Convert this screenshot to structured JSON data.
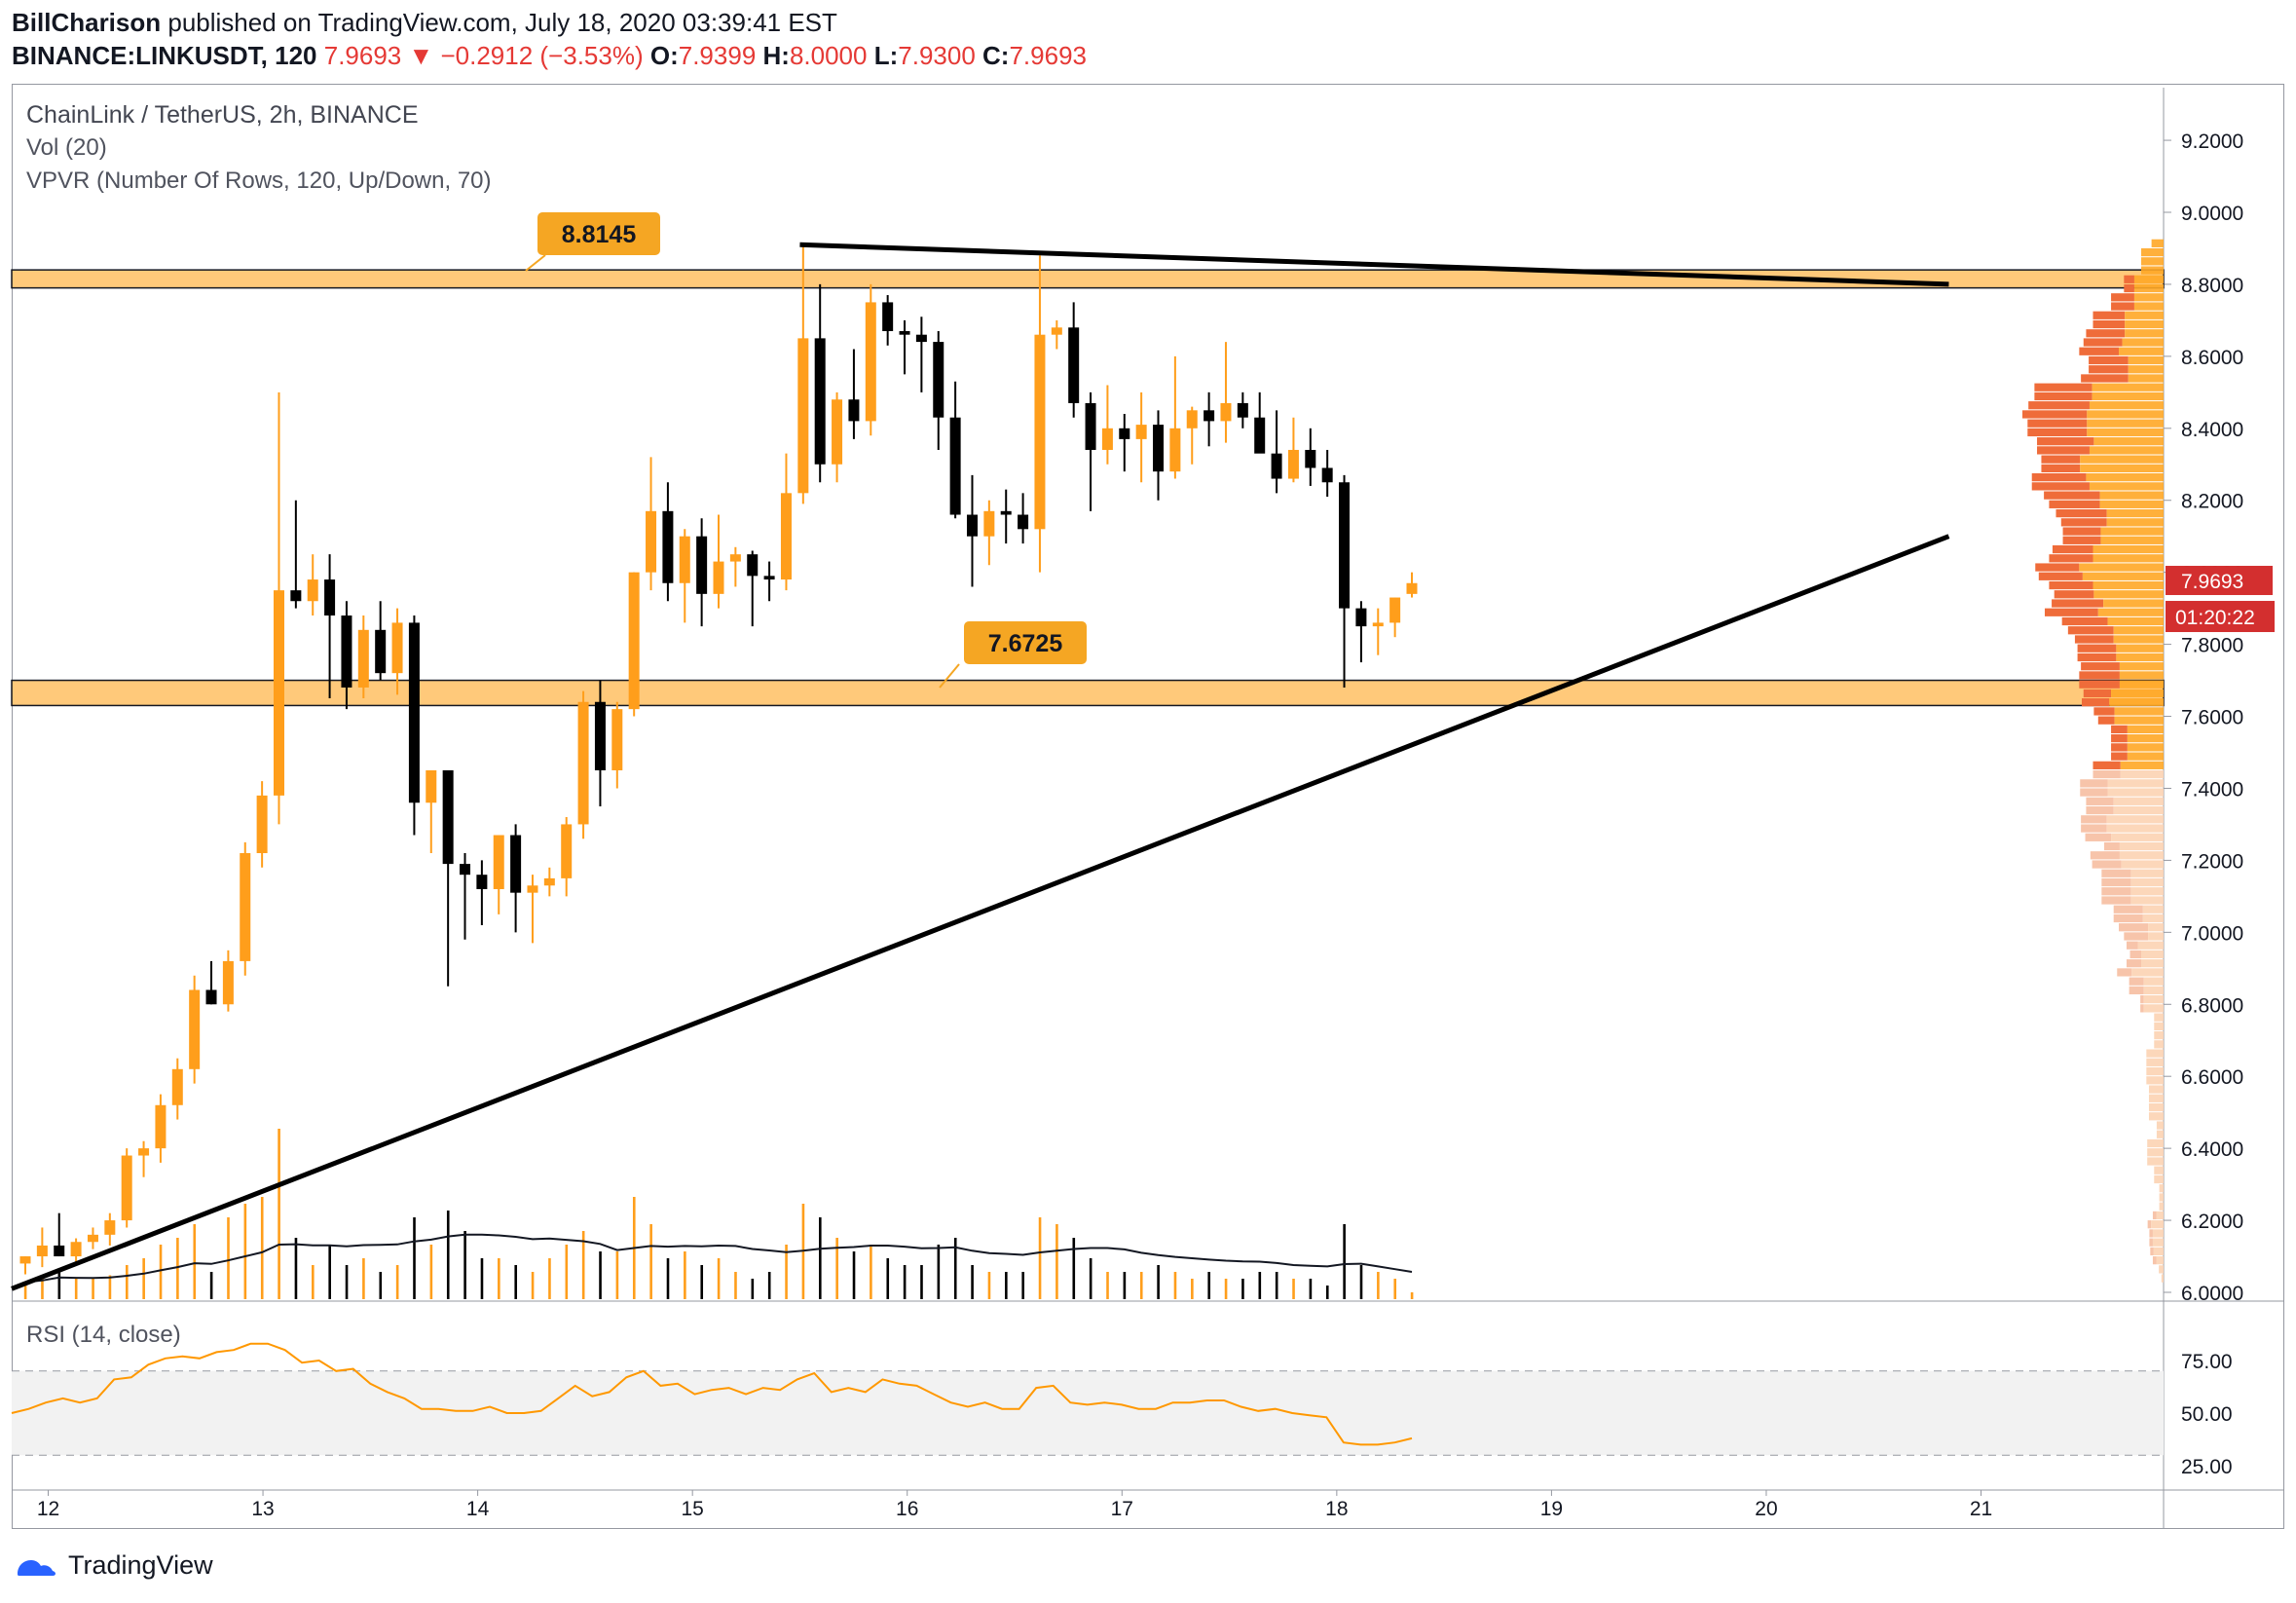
{
  "header": {
    "author": "BillCharison",
    "published_text": "published on TradingView.com, July 18, 2020 03:39:41 EST",
    "symbol": "BINANCE:LINKUSDT, 120",
    "last": "7.9693",
    "arrow": "▼",
    "change": "−0.2912 (−3.53%)",
    "o_label": "O:",
    "o_value": "7.9399",
    "h_label": "H:",
    "h_value": "8.0000",
    "l_label": "L:",
    "l_value": "7.9300",
    "c_label": "C:",
    "c_value": "7.9693"
  },
  "legend": {
    "title": "ChainLink / TetherUS, 2h, BINANCE",
    "vol": "Vol (20)",
    "vpvr": "VPVR (Number Of Rows, 120, Up/Down, 70)",
    "rsi": "RSI (14, close)"
  },
  "footer": {
    "brand": "TradingView"
  },
  "colors": {
    "up": "#ff9e1b",
    "down": "#000000",
    "zone": "#ffb74d",
    "zone_label": "#f5a623",
    "price_tag": "#d32f2f",
    "rsi": "#ff9800",
    "vpvr_up": "#ffa726",
    "vpvr_down": "#ef6c3a"
  },
  "chart_data": {
    "type": "candlestick",
    "price_axis": {
      "min": 6.0,
      "max": 9.2,
      "ticks": [
        "9.2000",
        "9.0000",
        "8.8000",
        "8.6000",
        "8.4000",
        "8.2000",
        "8.0000",
        "7.8000",
        "7.6000",
        "7.4000",
        "7.2000",
        "7.0000",
        "6.8000",
        "6.6000",
        "6.4000",
        "6.2000",
        "6.0000"
      ]
    },
    "x_axis": {
      "ticks": [
        "12",
        "13",
        "14",
        "15",
        "16",
        "17",
        "18",
        "19",
        "20",
        "21"
      ],
      "day_start": 11.83,
      "day_end": 21.85
    },
    "current_price_label": "7.9693",
    "countdown_label": "01:20:22",
    "zones": [
      {
        "label": "8.8145",
        "low": 8.79,
        "high": 8.84
      },
      {
        "label": "7.6725",
        "low": 7.63,
        "high": 7.7
      }
    ],
    "trendlines": [
      {
        "name": "resistance",
        "from": [
          15.5,
          8.91
        ],
        "to": [
          20.85,
          8.8
        ]
      },
      {
        "name": "support",
        "from": [
          11.83,
          6.01
        ],
        "to": [
          20.85,
          8.1
        ]
      }
    ],
    "candles": [
      [
        6.08,
        6.1,
        6.05,
        6.1
      ],
      [
        6.1,
        6.18,
        6.07,
        6.13
      ],
      [
        6.13,
        6.22,
        6.1,
        6.1
      ],
      [
        6.1,
        6.15,
        6.08,
        6.14
      ],
      [
        6.14,
        6.18,
        6.12,
        6.16
      ],
      [
        6.16,
        6.22,
        6.13,
        6.2
      ],
      [
        6.2,
        6.4,
        6.18,
        6.38
      ],
      [
        6.38,
        6.42,
        6.32,
        6.4
      ],
      [
        6.4,
        6.55,
        6.36,
        6.52
      ],
      [
        6.52,
        6.65,
        6.48,
        6.62
      ],
      [
        6.62,
        6.88,
        6.58,
        6.84
      ],
      [
        6.84,
        6.92,
        6.8,
        6.8
      ],
      [
        6.8,
        6.95,
        6.78,
        6.92
      ],
      [
        6.92,
        7.25,
        6.88,
        7.22
      ],
      [
        7.22,
        7.42,
        7.18,
        7.38
      ],
      [
        7.38,
        8.5,
        7.3,
        7.95
      ],
      [
        7.95,
        8.2,
        7.9,
        7.92
      ],
      [
        7.92,
        8.05,
        7.88,
        7.98
      ],
      [
        7.98,
        8.05,
        7.65,
        7.88
      ],
      [
        7.88,
        7.92,
        7.62,
        7.68
      ],
      [
        7.68,
        7.88,
        7.65,
        7.84
      ],
      [
        7.84,
        7.92,
        7.7,
        7.72
      ],
      [
        7.72,
        7.9,
        7.66,
        7.86
      ],
      [
        7.86,
        7.88,
        7.27,
        7.36
      ],
      [
        7.36,
        7.45,
        7.22,
        7.45
      ],
      [
        7.45,
        7.45,
        6.85,
        7.19
      ],
      [
        7.19,
        7.22,
        6.98,
        7.16
      ],
      [
        7.16,
        7.2,
        7.02,
        7.12
      ],
      [
        7.12,
        7.27,
        7.05,
        7.27
      ],
      [
        7.27,
        7.3,
        7.0,
        7.11
      ],
      [
        7.11,
        7.16,
        6.97,
        7.13
      ],
      [
        7.13,
        7.18,
        7.1,
        7.15
      ],
      [
        7.15,
        7.32,
        7.1,
        7.3
      ],
      [
        7.3,
        7.67,
        7.26,
        7.64
      ],
      [
        7.64,
        7.7,
        7.35,
        7.45
      ],
      [
        7.45,
        7.64,
        7.4,
        7.62
      ],
      [
        7.62,
        8.0,
        7.6,
        8.0
      ],
      [
        8.0,
        8.32,
        7.95,
        8.17
      ],
      [
        8.17,
        8.25,
        7.92,
        7.97
      ],
      [
        7.97,
        8.12,
        7.86,
        8.1
      ],
      [
        8.1,
        8.15,
        7.85,
        7.94
      ],
      [
        7.94,
        8.16,
        7.9,
        8.03
      ],
      [
        8.03,
        8.07,
        7.96,
        8.05
      ],
      [
        8.05,
        8.06,
        7.85,
        7.99
      ],
      [
        7.99,
        8.03,
        7.92,
        7.98
      ],
      [
        7.98,
        8.33,
        7.95,
        8.22
      ],
      [
        8.22,
        8.91,
        8.19,
        8.65
      ],
      [
        8.65,
        8.8,
        8.25,
        8.3
      ],
      [
        8.3,
        8.5,
        8.25,
        8.48
      ],
      [
        8.48,
        8.62,
        8.37,
        8.42
      ],
      [
        8.42,
        8.8,
        8.38,
        8.75
      ],
      [
        8.75,
        8.77,
        8.63,
        8.67
      ],
      [
        8.67,
        8.7,
        8.55,
        8.66
      ],
      [
        8.66,
        8.71,
        8.5,
        8.64
      ],
      [
        8.64,
        8.67,
        8.34,
        8.43
      ],
      [
        8.43,
        8.53,
        8.15,
        8.16
      ],
      [
        8.16,
        8.27,
        7.96,
        8.1
      ],
      [
        8.1,
        8.2,
        8.02,
        8.17
      ],
      [
        8.17,
        8.23,
        8.08,
        8.16
      ],
      [
        8.16,
        8.22,
        8.08,
        8.12
      ],
      [
        8.12,
        8.88,
        8.0,
        8.66
      ],
      [
        8.66,
        8.7,
        8.62,
        8.68
      ],
      [
        8.68,
        8.75,
        8.43,
        8.47
      ],
      [
        8.47,
        8.5,
        8.17,
        8.34
      ],
      [
        8.34,
        8.52,
        8.3,
        8.4
      ],
      [
        8.4,
        8.44,
        8.28,
        8.37
      ],
      [
        8.37,
        8.5,
        8.25,
        8.41
      ],
      [
        8.41,
        8.45,
        8.2,
        8.28
      ],
      [
        8.28,
        8.6,
        8.26,
        8.4
      ],
      [
        8.4,
        8.46,
        8.3,
        8.45
      ],
      [
        8.45,
        8.5,
        8.35,
        8.42
      ],
      [
        8.42,
        8.64,
        8.36,
        8.47
      ],
      [
        8.47,
        8.5,
        8.4,
        8.43
      ],
      [
        8.43,
        8.5,
        8.34,
        8.33
      ],
      [
        8.33,
        8.45,
        8.22,
        8.26
      ],
      [
        8.26,
        8.43,
        8.25,
        8.34
      ],
      [
        8.34,
        8.4,
        8.24,
        8.29
      ],
      [
        8.29,
        8.34,
        8.21,
        8.25
      ],
      [
        8.25,
        8.27,
        7.68,
        7.9
      ],
      [
        7.9,
        7.92,
        7.75,
        7.85
      ],
      [
        7.85,
        7.9,
        7.77,
        7.86
      ],
      [
        7.86,
        7.93,
        7.82,
        7.93
      ],
      [
        7.94,
        8.0,
        7.93,
        7.97
      ]
    ],
    "volume": [
      0.25,
      0.3,
      0.4,
      0.3,
      0.3,
      0.35,
      0.5,
      0.6,
      0.8,
      0.9,
      1.1,
      0.4,
      1.2,
      1.4,
      1.5,
      2.5,
      0.9,
      0.5,
      0.8,
      0.5,
      0.6,
      0.4,
      0.5,
      1.2,
      0.8,
      1.3,
      1.0,
      0.6,
      0.6,
      0.5,
      0.4,
      0.6,
      0.8,
      1.0,
      0.7,
      0.7,
      1.5,
      1.1,
      0.6,
      0.7,
      0.5,
      0.6,
      0.4,
      0.3,
      0.4,
      0.8,
      1.4,
      1.2,
      0.9,
      0.7,
      0.8,
      0.6,
      0.5,
      0.5,
      0.8,
      0.9,
      0.5,
      0.4,
      0.4,
      0.4,
      1.2,
      1.1,
      0.9,
      0.6,
      0.4,
      0.4,
      0.4,
      0.5,
      0.4,
      0.3,
      0.4,
      0.3,
      0.3,
      0.4,
      0.4,
      0.3,
      0.3,
      0.2,
      1.1,
      0.5,
      0.4,
      0.3,
      0.1
    ],
    "rsi": {
      "min": 20,
      "max": 85,
      "ticks": [
        "75.00",
        "50.00",
        "25.00"
      ],
      "band": [
        30,
        70
      ],
      "values": [
        50,
        52,
        55,
        57,
        55,
        57,
        66,
        67,
        73,
        76,
        77,
        76,
        79,
        80,
        83,
        83,
        80,
        74,
        75,
        70,
        71,
        64,
        60,
        57,
        52,
        52,
        51,
        51,
        53,
        50,
        50,
        51,
        57,
        63,
        58,
        60,
        67,
        70,
        63,
        64,
        59,
        61,
        62,
        59,
        62,
        61,
        66,
        69,
        60,
        62,
        60,
        66,
        64,
        63,
        59,
        55,
        53,
        55,
        52,
        52,
        62,
        63,
        55,
        54,
        55,
        54,
        52,
        52,
        55,
        55,
        56,
        56,
        53,
        51,
        52,
        50,
        49,
        48,
        36,
        35,
        35,
        36,
        38
      ]
    }
  }
}
